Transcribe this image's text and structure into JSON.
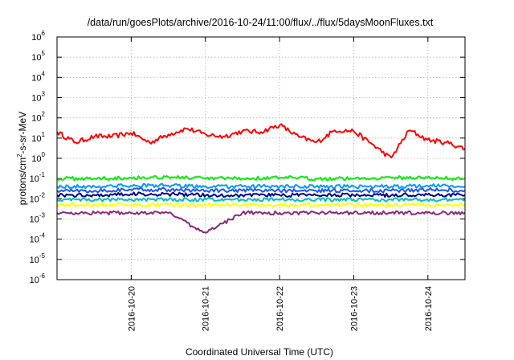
{
  "chart_data": {
    "type": "line",
    "title": "/data/run/goesPlots/archive/2016-10-24/11:00/flux/../flux/5daysMoonFluxes.txt",
    "xlabel": "Coordinated Universal Time (UTC)",
    "ylabel": "protons/cm²-s-sr-MeV",
    "ylabel_parts": {
      "pre": "protons/cm",
      "sup": "2",
      "post": "-s-sr-MeV"
    },
    "y_scale": "log",
    "ylim": [
      1e-06,
      1000000.0
    ],
    "xlim": [
      "2016-10-19 00:00",
      "2016-10-24 12:00"
    ],
    "grid": true,
    "x_ticks": [
      "2016-10-20",
      "2016-10-21",
      "2016-10-22",
      "2016-10-23",
      "2016-10-24"
    ],
    "y_ticks": [
      {
        "base": "10",
        "exp": "-6"
      },
      {
        "base": "10",
        "exp": "-5"
      },
      {
        "base": "10",
        "exp": "-4"
      },
      {
        "base": "10",
        "exp": "-3"
      },
      {
        "base": "10",
        "exp": "-2"
      },
      {
        "base": "10",
        "exp": "-1"
      },
      {
        "base": "10",
        "exp": "0"
      },
      {
        "base": "10",
        "exp": "1"
      },
      {
        "base": "10",
        "exp": "2"
      },
      {
        "base": "10",
        "exp": "3"
      },
      {
        "base": "10",
        "exp": "4"
      },
      {
        "base": "10",
        "exp": "5"
      },
      {
        "base": "10",
        "exp": "6"
      }
    ],
    "series": [
      {
        "color": "#ff0000",
        "x": [
          "2016-10-19 00:00",
          "2016-10-19 06:00",
          "2016-10-19 12:00",
          "2016-10-19 18:00",
          "2016-10-20 00:00",
          "2016-10-20 06:00",
          "2016-10-20 12:00",
          "2016-10-20 18:00",
          "2016-10-21 00:00",
          "2016-10-21 06:00",
          "2016-10-21 12:00",
          "2016-10-21 18:00",
          "2016-10-22 00:00",
          "2016-10-22 06:00",
          "2016-10-22 12:00",
          "2016-10-22 18:00",
          "2016-10-23 00:00",
          "2016-10-23 06:00",
          "2016-10-23 12:00",
          "2016-10-23 18:00",
          "2016-10-24 00:00",
          "2016-10-24 06:00",
          "2016-10-24 12:00"
        ],
        "values": [
          20,
          6,
          12,
          12,
          18,
          6,
          15,
          30,
          15,
          12,
          22,
          20,
          45,
          12,
          6,
          25,
          22,
          5,
          1,
          25,
          8,
          6,
          3
        ]
      },
      {
        "color": "#00ee00",
        "x": [
          "2016-10-19 00:00",
          "2016-10-19 12:00",
          "2016-10-20 00:00",
          "2016-10-20 12:00",
          "2016-10-21 00:00",
          "2016-10-21 12:00",
          "2016-10-22 00:00",
          "2016-10-22 12:00",
          "2016-10-23 00:00",
          "2016-10-23 12:00",
          "2016-10-24 00:00",
          "2016-10-24 12:00"
        ],
        "values": [
          0.1,
          0.1,
          0.11,
          0.12,
          0.1,
          0.1,
          0.11,
          0.1,
          0.1,
          0.11,
          0.11,
          0.1
        ]
      },
      {
        "color": "#0099ff",
        "x": [
          "2016-10-19 00:00",
          "2016-10-19 12:00",
          "2016-10-20 00:00",
          "2016-10-20 12:00",
          "2016-10-21 00:00",
          "2016-10-21 12:00",
          "2016-10-22 00:00",
          "2016-10-22 12:00",
          "2016-10-23 00:00",
          "2016-10-23 12:00",
          "2016-10-24 00:00",
          "2016-10-24 12:00"
        ],
        "values": [
          0.04,
          0.04,
          0.045,
          0.045,
          0.04,
          0.04,
          0.04,
          0.04,
          0.04,
          0.04,
          0.045,
          0.04
        ]
      },
      {
        "color": "#2255ee",
        "x": [
          "2016-10-19 00:00",
          "2016-10-19 12:00",
          "2016-10-20 00:00",
          "2016-10-20 12:00",
          "2016-10-21 00:00",
          "2016-10-21 12:00",
          "2016-10-22 00:00",
          "2016-10-22 12:00",
          "2016-10-23 00:00",
          "2016-10-23 12:00",
          "2016-10-24 00:00",
          "2016-10-24 12:00"
        ],
        "values": [
          0.025,
          0.025,
          0.028,
          0.028,
          0.025,
          0.025,
          0.025,
          0.025,
          0.025,
          0.025,
          0.028,
          0.025
        ]
      },
      {
        "color": "#00008b",
        "x": [
          "2016-10-19 00:00",
          "2016-10-19 12:00",
          "2016-10-20 00:00",
          "2016-10-20 12:00",
          "2016-10-21 00:00",
          "2016-10-21 12:00",
          "2016-10-22 00:00",
          "2016-10-22 12:00",
          "2016-10-23 00:00",
          "2016-10-23 12:00",
          "2016-10-24 00:00",
          "2016-10-24 12:00"
        ],
        "values": [
          0.015,
          0.015,
          0.017,
          0.017,
          0.015,
          0.015,
          0.015,
          0.015,
          0.015,
          0.015,
          0.016,
          0.015
        ]
      },
      {
        "color": "#00bfbf",
        "x": [
          "2016-10-19 00:00",
          "2016-10-19 12:00",
          "2016-10-20 00:00",
          "2016-10-20 12:00",
          "2016-10-21 00:00",
          "2016-10-21 12:00",
          "2016-10-22 00:00",
          "2016-10-22 12:00",
          "2016-10-23 00:00",
          "2016-10-23 12:00",
          "2016-10-24 00:00",
          "2016-10-24 12:00"
        ],
        "values": [
          0.009,
          0.009,
          0.009,
          0.009,
          0.009,
          0.009,
          0.009,
          0.009,
          0.009,
          0.009,
          0.009,
          0.009
        ]
      },
      {
        "color": "#ffff00",
        "x": [
          "2016-10-19 00:00",
          "2016-10-19 12:00",
          "2016-10-20 00:00",
          "2016-10-20 12:00",
          "2016-10-21 00:00",
          "2016-10-21 12:00",
          "2016-10-22 00:00",
          "2016-10-22 12:00",
          "2016-10-23 00:00",
          "2016-10-23 12:00",
          "2016-10-24 00:00",
          "2016-10-24 12:00"
        ],
        "values": [
          0.005,
          0.005,
          0.005,
          0.005,
          0.005,
          0.005,
          0.005,
          0.005,
          0.005,
          0.005,
          0.005,
          0.005
        ]
      },
      {
        "color": "#8b2a7a",
        "x": [
          "2016-10-19 00:00",
          "2016-10-19 12:00",
          "2016-10-20 00:00",
          "2016-10-20 12:00",
          "2016-10-21 00:00",
          "2016-10-21 12:00",
          "2016-10-22 00:00",
          "2016-10-22 12:00",
          "2016-10-23 00:00",
          "2016-10-23 12:00",
          "2016-10-24 00:00",
          "2016-10-24 12:00"
        ],
        "values": [
          0.002,
          0.002,
          0.002,
          0.002,
          0.0002,
          0.002,
          0.002,
          0.002,
          0.002,
          0.002,
          0.002,
          0.002
        ]
      }
    ]
  }
}
